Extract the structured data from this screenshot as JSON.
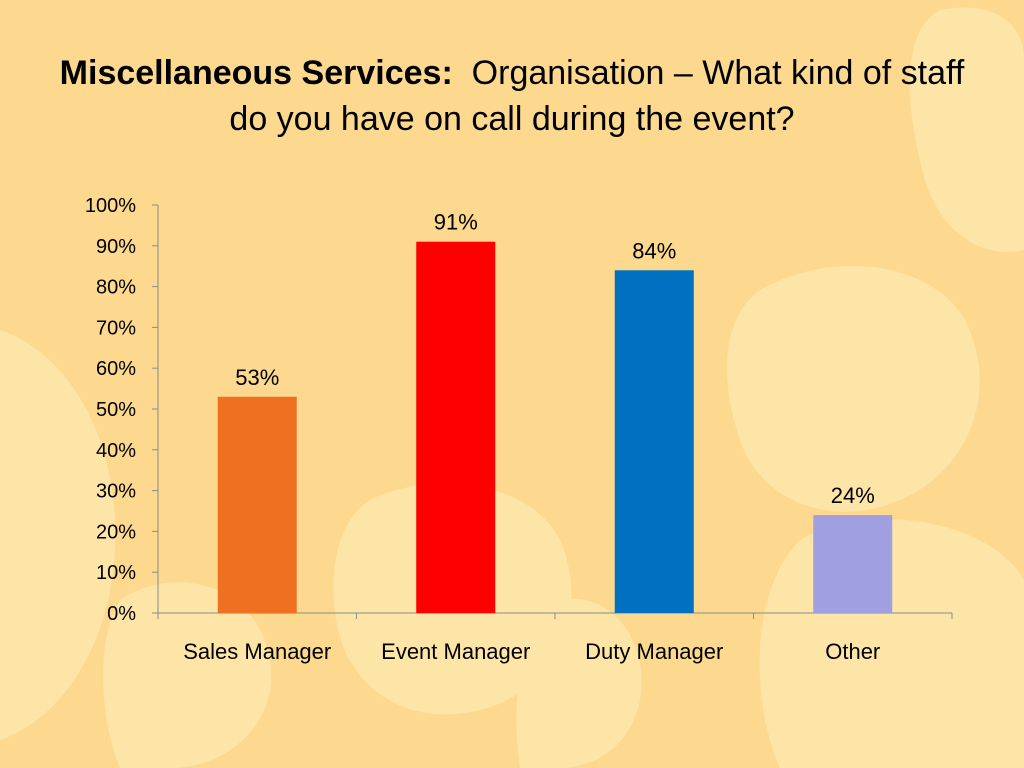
{
  "slide": {
    "title_bold": "Miscellaneous Services:",
    "title_rest": "Organisation – What kind of staff do you have on call during the event?"
  },
  "colors": {
    "background": "#FCD98E",
    "blob": "#FDE5A8"
  },
  "chart_data": {
    "type": "bar",
    "categories": [
      "Sales Manager",
      "Event Manager",
      "Duty Manager",
      "Other"
    ],
    "values": [
      53,
      91,
      84,
      24
    ],
    "data_labels": [
      "53%",
      "91%",
      "84%",
      "24%"
    ],
    "bar_colors": [
      "#EE7020",
      "#FF0000",
      "#0070C0",
      "#A0A0E0"
    ],
    "y_ticks": [
      "0%",
      "10%",
      "20%",
      "30%",
      "40%",
      "50%",
      "60%",
      "70%",
      "80%",
      "90%",
      "100%"
    ],
    "ylim": [
      0,
      100
    ],
    "title": "",
    "xlabel": "",
    "ylabel": "",
    "grid": false,
    "legend": "none"
  }
}
